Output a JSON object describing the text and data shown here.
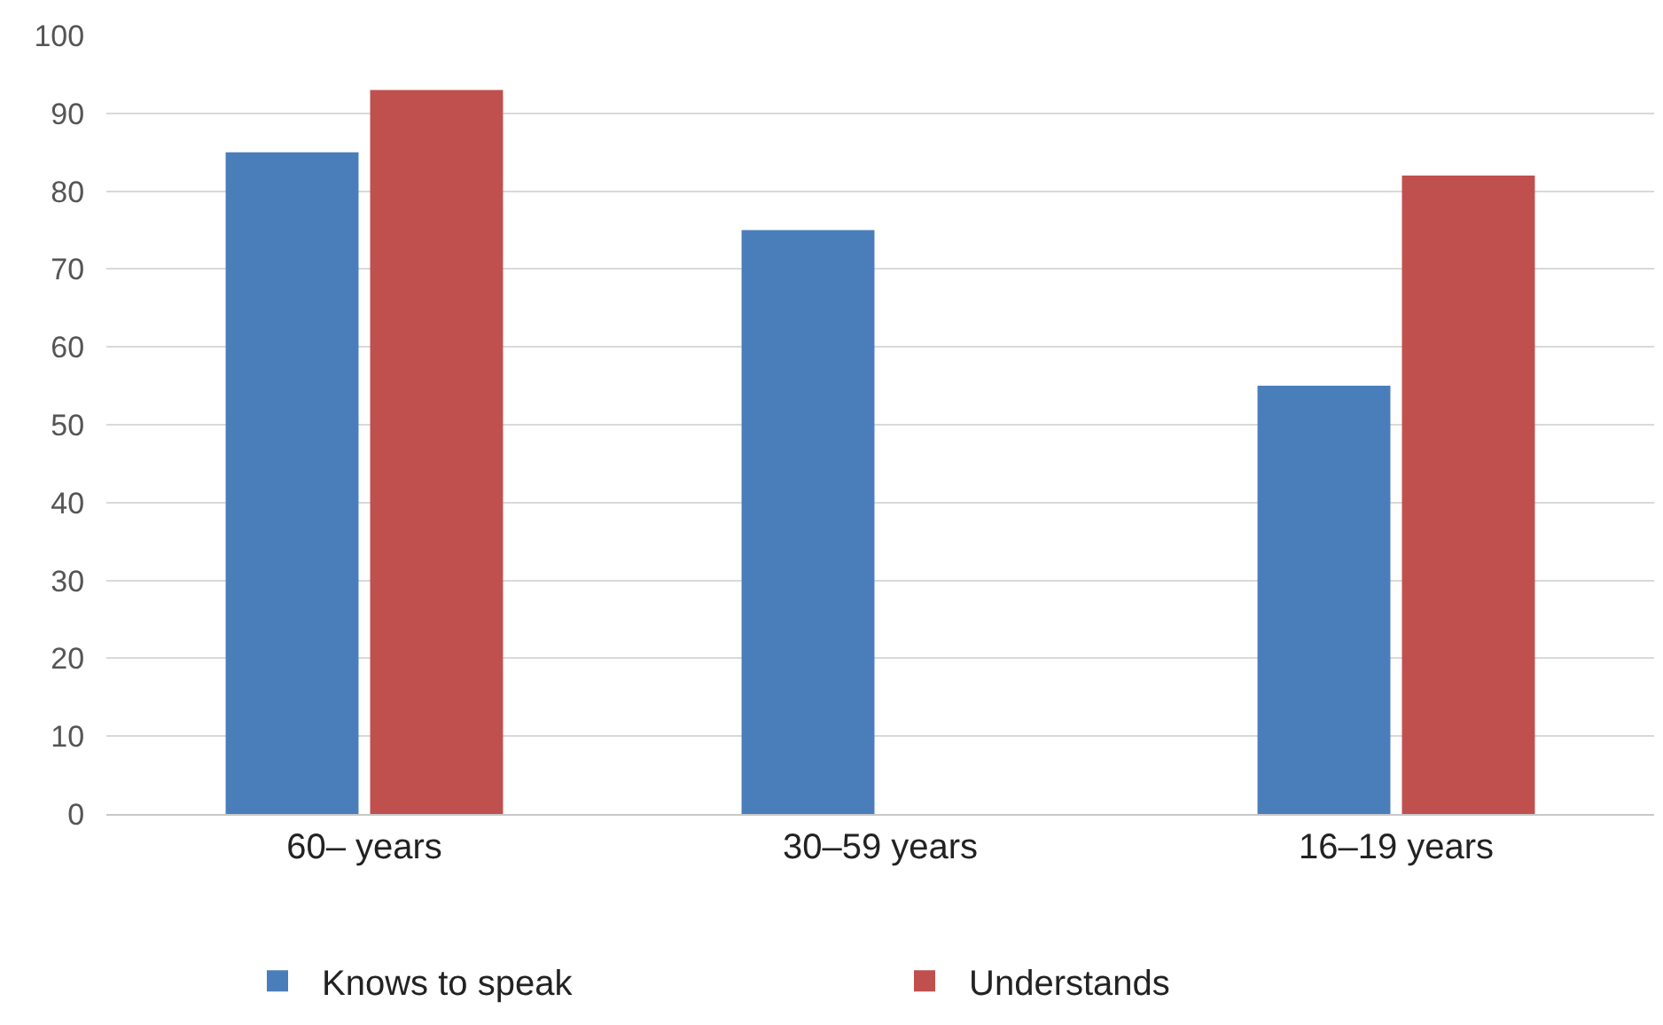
{
  "chart_data": {
    "type": "bar",
    "categories": [
      "60– years",
      "30–59 years",
      "16–19 years"
    ],
    "series": [
      {
        "name": "Knows to speak",
        "color": "#4a7ebb",
        "values": [
          85,
          75,
          55
        ]
      },
      {
        "name": "Understands",
        "color": "#c0504d",
        "values": [
          93,
          null,
          82
        ]
      }
    ],
    "ylim": [
      0,
      100
    ],
    "yticks": [
      0,
      10,
      20,
      30,
      40,
      50,
      60,
      70,
      80,
      90,
      100
    ],
    "grid": "y",
    "legend": "bottom"
  }
}
